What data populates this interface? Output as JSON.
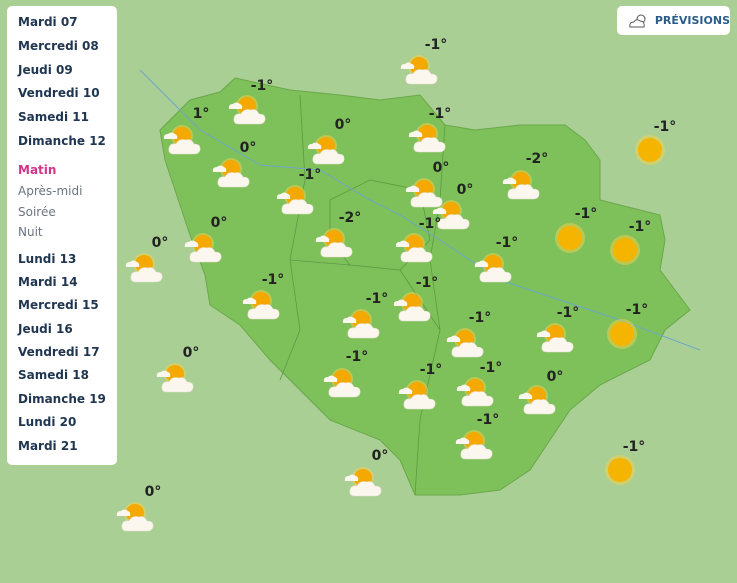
{
  "days_top": [
    "Mardi 07",
    "Mercredi 08",
    "Jeudi 09",
    "Vendredi 10",
    "Samedi 11",
    "Dimanche 12"
  ],
  "periods": [
    {
      "label": "Matin",
      "active": true
    },
    {
      "label": "Après-midi",
      "active": false
    },
    {
      "label": "Soirée",
      "active": false
    },
    {
      "label": "Nuit",
      "active": false
    }
  ],
  "days_bottom": [
    "Lundi 13",
    "Mardi 14",
    "Mercredi 15",
    "Jeudi 16",
    "Vendredi 17",
    "Samedi 18",
    "Dimanche 19",
    "Lundi 20",
    "Mardi 21"
  ],
  "forecast_button": {
    "label": "PRÉVISIONS",
    "icon": "sun-cloud-icon"
  },
  "colors": {
    "region": "#7ec05a",
    "surroundings": "#a9cf94",
    "active_period": "#d6338a",
    "sun": "#f5b400"
  },
  "markers": [
    {
      "temp": "-1°",
      "icon": "sun-cloud"
    },
    {
      "temp": "-1°",
      "icon": "sun-cloud"
    },
    {
      "temp": "1°",
      "icon": "sun-cloud"
    },
    {
      "temp": "0°",
      "icon": "sun-cloud"
    },
    {
      "temp": "-1°",
      "icon": "sun-cloud"
    },
    {
      "temp": "0°",
      "icon": "sun-cloud"
    },
    {
      "temp": "-1°",
      "icon": "sun-cloud"
    },
    {
      "temp": "0°",
      "icon": "sun-cloud"
    },
    {
      "temp": "0°",
      "icon": "sun-cloud"
    },
    {
      "temp": "-2°",
      "icon": "sun-cloud"
    },
    {
      "temp": "-1°",
      "icon": "sun"
    },
    {
      "temp": "-2°",
      "icon": "sun-cloud"
    },
    {
      "temp": "-1°",
      "icon": "sun-cloud"
    },
    {
      "temp": "0°",
      "icon": "sun-cloud"
    },
    {
      "temp": "-1°",
      "icon": "sun"
    },
    {
      "temp": "-1°",
      "icon": "sun"
    },
    {
      "temp": "-1°",
      "icon": "sun-cloud"
    },
    {
      "temp": "0°",
      "icon": "sun-cloud"
    },
    {
      "temp": "-1°",
      "icon": "sun-cloud"
    },
    {
      "temp": "-1°",
      "icon": "sun-cloud"
    },
    {
      "temp": "-1°",
      "icon": "sun-cloud"
    },
    {
      "temp": "-1°",
      "icon": "sun-cloud"
    },
    {
      "temp": "-1°",
      "icon": "sun-cloud"
    },
    {
      "temp": "-1°",
      "icon": "sun"
    },
    {
      "temp": "0°",
      "icon": "sun-cloud"
    },
    {
      "temp": "-1°",
      "icon": "sun-cloud"
    },
    {
      "temp": "-1°",
      "icon": "sun-cloud"
    },
    {
      "temp": "-1°",
      "icon": "sun-cloud"
    },
    {
      "temp": "0°",
      "icon": "sun-cloud"
    },
    {
      "temp": "-1°",
      "icon": "sun-cloud"
    },
    {
      "temp": "-1°",
      "icon": "sun"
    },
    {
      "temp": "0°",
      "icon": "sun-cloud"
    },
    {
      "temp": "0°",
      "icon": "sun-cloud"
    }
  ]
}
